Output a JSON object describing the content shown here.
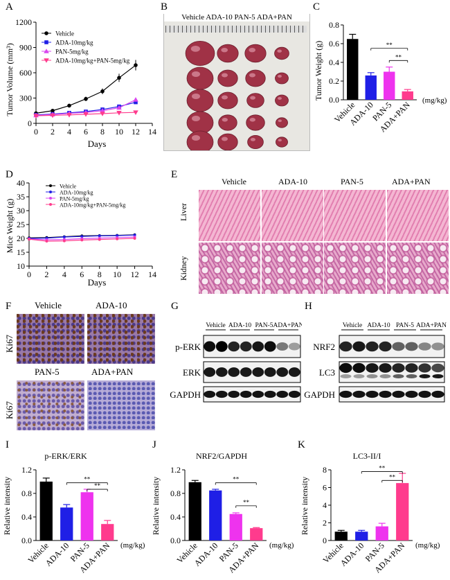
{
  "panels": {
    "A": {
      "letter": "A",
      "ylabel": "Tumor Volume (mm³)",
      "xlabel": "Days"
    },
    "B": {
      "letter": "B",
      "header": "Vehicle ADA-10 PAN-5 ADA+PAN"
    },
    "C": {
      "letter": "C",
      "ylabel": "Tumor Weight (g)",
      "unit": "(mg/kg)"
    },
    "D": {
      "letter": "D",
      "ylabel": "Mice Weight (g)",
      "xlabel": "Days"
    },
    "E": {
      "letter": "E",
      "cols": [
        "Vehicle",
        "ADA-10",
        "PAN-5",
        "ADA+PAN"
      ],
      "rows": [
        "Liver",
        "Kidney"
      ]
    },
    "F": {
      "letter": "F",
      "labels": [
        "Vehicle",
        "ADA-10",
        "PAN-5",
        "ADA+PAN"
      ],
      "rowlabel": "Ki67"
    },
    "G": {
      "letter": "G",
      "cols": [
        "Vehicle",
        "ADA-10",
        "PAN-5",
        "ADA+PAN"
      ],
      "bands": [
        "p-ERK",
        "ERK",
        "GAPDH"
      ]
    },
    "H": {
      "letter": "H",
      "cols": [
        "Vehicle",
        "ADA-10",
        "PAN-5",
        "ADA+PAN"
      ],
      "bands": [
        "NRF2",
        "LC3",
        "GAPDH"
      ]
    },
    "I": {
      "letter": "I",
      "title": "p-ERK/ERK",
      "ylabel": "Relative intensity",
      "unit": "(mg/kg)"
    },
    "J": {
      "letter": "J",
      "title": "NRF2/GAPDH",
      "ylabel": "Relative intensity",
      "unit": "(mg/kg)"
    },
    "K": {
      "letter": "K",
      "title": "LC3-II/I",
      "ylabel": "Relative intensity",
      "unit": "(mg/kg)"
    }
  },
  "chart_data": [
    {
      "id": "A",
      "type": "line",
      "x": [
        0,
        2,
        4,
        6,
        8,
        10,
        12
      ],
      "xlim": [
        0,
        14
      ],
      "ylim": [
        0,
        1200
      ],
      "xticks": [
        "0",
        "2",
        "4",
        "6",
        "8",
        "10",
        "12",
        "14"
      ],
      "yticks": [
        "0",
        "300",
        "600",
        "900",
        "1200"
      ],
      "series": [
        {
          "name": "Vehicle",
          "color": "#000000",
          "marker": "circle",
          "values": [
            120,
            150,
            210,
            290,
            380,
            540,
            690
          ]
        },
        {
          "name": "ADA-10mg/kg",
          "color": "#1f1fe6",
          "marker": "square",
          "values": [
            100,
            110,
            125,
            140,
            165,
            200,
            250
          ]
        },
        {
          "name": "PAN-5mg/kg",
          "color": "#d946ef",
          "marker": "triangle",
          "values": [
            95,
            105,
            118,
            130,
            150,
            185,
            280
          ]
        },
        {
          "name": "ADA-10mg/kg+PAN-5mg/kg",
          "color": "#ff3b8d",
          "marker": "tri-down",
          "values": [
            90,
            95,
            100,
            108,
            115,
            125,
            130
          ]
        }
      ]
    },
    {
      "id": "C",
      "type": "bar",
      "categories": [
        "Vehicle",
        "ADA-10",
        "PAN-5",
        "ADA+PAN"
      ],
      "values": [
        0.65,
        0.26,
        0.3,
        0.09
      ],
      "errors": [
        0.05,
        0.03,
        0.05,
        0.02
      ],
      "colors": [
        "#000000",
        "#1f1fe6",
        "#ee33ee",
        "#ff3b8d"
      ],
      "ylim": [
        0,
        0.8
      ],
      "yticks": [
        "0.0",
        "0.2",
        "0.4",
        "0.6",
        "0.8"
      ],
      "sig": [
        "**",
        "**"
      ]
    },
    {
      "id": "D",
      "type": "line",
      "x": [
        0,
        2,
        4,
        6,
        8,
        10,
        12
      ],
      "xlim": [
        0,
        14
      ],
      "ylim": [
        10,
        40
      ],
      "xticks": [
        "0",
        "2",
        "4",
        "6",
        "8",
        "10",
        "12",
        "14"
      ],
      "yticks": [
        "10",
        "15",
        "20",
        "25",
        "30",
        "35",
        "40"
      ],
      "series": [
        {
          "name": "Vehicle",
          "color": "#000000",
          "values": [
            20.2,
            20.3,
            20.6,
            20.9,
            21.0,
            21.1,
            21.3
          ]
        },
        {
          "name": "ADA-10mg/kg",
          "color": "#1f1fe6",
          "values": [
            20.0,
            20.1,
            20.5,
            20.7,
            20.9,
            21.0,
            21.2
          ]
        },
        {
          "name": "PAN-5mg/kg",
          "color": "#d946ef",
          "values": [
            19.8,
            19.5,
            19.6,
            19.9,
            20.1,
            20.3,
            20.5
          ]
        },
        {
          "name": "ADA-10mg/kg+PAN-5mg/kg",
          "color": "#ff3b8d",
          "values": [
            19.7,
            19.0,
            19.1,
            19.4,
            19.6,
            19.8,
            20.0
          ]
        }
      ]
    },
    {
      "id": "I",
      "type": "bar",
      "categories": [
        "Vehicle",
        "ADA-10",
        "PAN-5",
        "ADA+PAN"
      ],
      "values": [
        1.0,
        0.56,
        0.82,
        0.28
      ],
      "errors": [
        0.06,
        0.05,
        0.05,
        0.06
      ],
      "colors": [
        "#000000",
        "#1f1fe6",
        "#ee33ee",
        "#ff3b8d"
      ],
      "ylim": [
        0,
        1.2
      ],
      "yticks": [
        "0.0",
        "0.4",
        "0.8",
        "1.2"
      ],
      "sig": [
        "**",
        "**"
      ]
    },
    {
      "id": "J",
      "type": "bar",
      "categories": [
        "Vehicle",
        "ADA-10",
        "PAN-5",
        "ADA+PAN"
      ],
      "values": [
        0.99,
        0.85,
        0.45,
        0.21
      ],
      "errors": [
        0.03,
        0.02,
        0.02,
        0.01
      ],
      "colors": [
        "#000000",
        "#1f1fe6",
        "#ee33ee",
        "#ff3b8d"
      ],
      "ylim": [
        0,
        1.2
      ],
      "yticks": [
        "0.0",
        "0.4",
        "0.8",
        "1.2"
      ],
      "sig": [
        "**",
        "**"
      ]
    },
    {
      "id": "K",
      "type": "bar",
      "categories": [
        "Vehicle",
        "ADA-10",
        "PAN-5",
        "ADA+PAN"
      ],
      "values": [
        1.0,
        1.0,
        1.6,
        6.5
      ],
      "errors": [
        0.15,
        0.15,
        0.35,
        1.1
      ],
      "colors": [
        "#000000",
        "#1f1fe6",
        "#ee33ee",
        "#ff3b8d"
      ],
      "ylim": [
        0,
        8
      ],
      "yticks": [
        "0",
        "2",
        "4",
        "6",
        "8"
      ],
      "sig": [
        "**",
        "**"
      ]
    }
  ]
}
